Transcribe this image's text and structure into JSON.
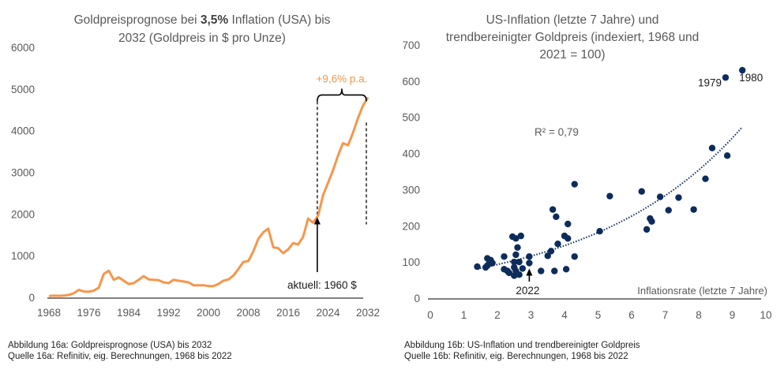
{
  "colors": {
    "line": "#F7964A",
    "scatter": "#0D2C5C",
    "axis": "#7F7F7F",
    "text": "#595959",
    "annotation": "#1A1A1A"
  },
  "chart_data": [
    {
      "type": "line",
      "title_pre": "Goldpreisprognose bei ",
      "title_bold": "3,5%",
      "title_post": " Inflation (USA) bis",
      "title_line2": "2032 (Goldpreis in $ pro Unze)",
      "xlabel": "",
      "ylabel": "",
      "xlim": [
        1968,
        2032
      ],
      "ylim": [
        0,
        6000
      ],
      "x_ticks": [
        "1968",
        "1976",
        "1984",
        "1992",
        "2000",
        "2008",
        "2016",
        "2024",
        "2032"
      ],
      "y_ticks": [
        "0",
        "1000",
        "2000",
        "3000",
        "4000",
        "5000",
        "6000"
      ],
      "grid": false,
      "series": [
        {
          "name": "Goldpreis",
          "x": [
            1968,
            1969,
            1970,
            1971,
            1972,
            1973,
            1974,
            1975,
            1976,
            1977,
            1978,
            1979,
            1980,
            1981,
            1982,
            1983,
            1984,
            1985,
            1986,
            1987,
            1988,
            1989,
            1990,
            1991,
            1992,
            1993,
            1994,
            1995,
            1996,
            1997,
            1998,
            1999,
            2000,
            2001,
            2002,
            2003,
            2004,
            2005,
            2006,
            2007,
            2008,
            2009,
            2010,
            2011,
            2012,
            2013,
            2014,
            2015,
            2016,
            2017,
            2018,
            2019,
            2020,
            2021,
            2022,
            2023,
            2024,
            2025,
            2026,
            2027,
            2028,
            2029,
            2030,
            2031,
            2032
          ],
          "values": [
            35,
            40,
            36,
            41,
            58,
            100,
            180,
            140,
            135,
            160,
            230,
            560,
            640,
            420,
            480,
            400,
            320,
            340,
            420,
            510,
            430,
            420,
            410,
            360,
            340,
            420,
            400,
            380,
            360,
            290,
            290,
            290,
            270,
            270,
            320,
            400,
            430,
            520,
            680,
            850,
            870,
            1100,
            1400,
            1560,
            1650,
            1200,
            1180,
            1060,
            1150,
            1300,
            1270,
            1450,
            1890,
            1790,
            1960,
            2450,
            2750,
            3050,
            3400,
            3700,
            3650,
            3950,
            4300,
            4600,
            4800
          ]
        }
      ],
      "annotations": {
        "growth_label": "+9,6% p.a.",
        "current_label": "aktuell: 1960 $",
        "current_year": 2022,
        "current_value": 1960,
        "bracket_from": 2022,
        "bracket_to": 2032
      },
      "caption_line1": "Abbildung 16a: Goldpreisprognose (USA) bis 2032",
      "caption_line2": "Quelle 16a: Refinitiv, eig. Berechnungen, 1968 bis 2022"
    },
    {
      "type": "scatter",
      "title_line1": "US-Inflation (letzte 7 Jahre) und",
      "title_line2": "trendbereinigter Goldpreis (indexiert, 1968 und",
      "title_line3": "2021 = 100)",
      "xlabel": "Inflationsrate (letzte 7 Jahre)",
      "ylabel": "",
      "xlim": [
        0,
        10
      ],
      "ylim": [
        0,
        700
      ],
      "x_ticks": [
        "0",
        "1",
        "2",
        "3",
        "4",
        "5",
        "6",
        "7",
        "8",
        "9",
        "10"
      ],
      "y_ticks": [
        "0",
        "100",
        "200",
        "300",
        "400",
        "500",
        "600",
        "700"
      ],
      "grid": false,
      "r_squared_label": "R² = 0,79",
      "trendline": {
        "type": "exponential",
        "x_range": [
          1.4,
          9.3
        ],
        "a": 59.5,
        "b": 0.223
      },
      "points": [
        {
          "x": 1.4,
          "y": 87
        },
        {
          "x": 1.65,
          "y": 85
        },
        {
          "x": 1.7,
          "y": 90
        },
        {
          "x": 1.75,
          "y": 95
        },
        {
          "x": 1.7,
          "y": 110
        },
        {
          "x": 1.8,
          "y": 105
        },
        {
          "x": 1.85,
          "y": 97
        },
        {
          "x": 2.2,
          "y": 115
        },
        {
          "x": 2.2,
          "y": 80
        },
        {
          "x": 2.3,
          "y": 75
        },
        {
          "x": 2.35,
          "y": 70
        },
        {
          "x": 2.45,
          "y": 170
        },
        {
          "x": 2.55,
          "y": 165
        },
        {
          "x": 2.7,
          "y": 172
        },
        {
          "x": 2.6,
          "y": 140
        },
        {
          "x": 2.55,
          "y": 120
        },
        {
          "x": 2.5,
          "y": 100
        },
        {
          "x": 2.65,
          "y": 100
        },
        {
          "x": 2.5,
          "y": 85
        },
        {
          "x": 2.55,
          "y": 75
        },
        {
          "x": 2.5,
          "y": 62
        },
        {
          "x": 2.65,
          "y": 65
        },
        {
          "x": 2.75,
          "y": 82
        },
        {
          "x": 2.95,
          "y": 115
        },
        {
          "x": 2.95,
          "y": 97
        },
        {
          "x": 3.3,
          "y": 75
        },
        {
          "x": 3.5,
          "y": 117
        },
        {
          "x": 3.6,
          "y": 130
        },
        {
          "x": 3.65,
          "y": 245
        },
        {
          "x": 3.75,
          "y": 225
        },
        {
          "x": 3.8,
          "y": 150
        },
        {
          "x": 3.7,
          "y": 75
        },
        {
          "x": 4.1,
          "y": 205
        },
        {
          "x": 4.0,
          "y": 172
        },
        {
          "x": 4.1,
          "y": 165
        },
        {
          "x": 4.05,
          "y": 80
        },
        {
          "x": 4.3,
          "y": 115
        },
        {
          "x": 4.3,
          "y": 315
        },
        {
          "x": 5.05,
          "y": 185
        },
        {
          "x": 5.35,
          "y": 282
        },
        {
          "x": 6.3,
          "y": 295
        },
        {
          "x": 6.45,
          "y": 190
        },
        {
          "x": 6.55,
          "y": 220
        },
        {
          "x": 6.6,
          "y": 212
        },
        {
          "x": 6.85,
          "y": 280
        },
        {
          "x": 7.1,
          "y": 243
        },
        {
          "x": 7.4,
          "y": 278
        },
        {
          "x": 7.85,
          "y": 245
        },
        {
          "x": 8.2,
          "y": 330
        },
        {
          "x": 8.4,
          "y": 415
        },
        {
          "x": 8.85,
          "y": 394
        },
        {
          "x": 8.8,
          "y": 610,
          "label": "1979"
        },
        {
          "x": 9.3,
          "y": 630,
          "label": "1980"
        }
      ],
      "highlight": {
        "label": "2022",
        "x": 2.95,
        "y": 97
      },
      "caption_line1": "Abbildung 16b: US-Inflation und trendbereinigter Goldpreis",
      "caption_line2": "Quelle 16b: Refinitiv, eig. Berechnungen, 1968 bis 2022"
    }
  ]
}
